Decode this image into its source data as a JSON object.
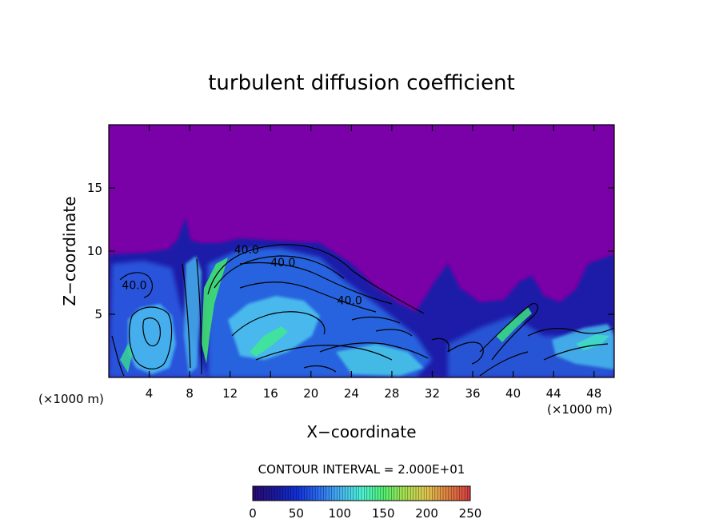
{
  "chart_data": {
    "type": "heatmap",
    "title": "turbulent diffusion coefficient",
    "xlabel": "X−coordinate",
    "ylabel": "Z−coordinate",
    "x_unit_left": "(×1000 m)",
    "x_unit_right": "(×1000 m)",
    "xlim": [
      0,
      50
    ],
    "ylim": [
      0,
      20
    ],
    "x_ticks": [
      4,
      8,
      12,
      16,
      20,
      24,
      28,
      32,
      36,
      40,
      44,
      48
    ],
    "y_ticks": [
      5,
      10,
      15
    ],
    "contour_interval_text": "CONTOUR INTERVAL = 2.000E+01",
    "contour_labels": [
      {
        "text": "40.0",
        "x": 1.3,
        "z": 7.0
      },
      {
        "text": "40.0",
        "x": 12.4,
        "z": 9.8
      },
      {
        "text": "40.0",
        "x": 16.0,
        "z": 8.8
      },
      {
        "text": "40.0",
        "x": 22.6,
        "z": 5.8
      }
    ],
    "colorbar": {
      "min": 0,
      "max": 250,
      "ticks": [
        0,
        50,
        100,
        150,
        200,
        250
      ],
      "colors": [
        "#2a0a78",
        "#1a1a9e",
        "#1030d8",
        "#2a6cf2",
        "#46b4f2",
        "#4ef2d8",
        "#50f070",
        "#a8e050",
        "#e0c850",
        "#e08040",
        "#d84040"
      ]
    },
    "colors": {
      "background_field": "#7a00a8",
      "low_turbulence": "#1a1aa8",
      "mid_turbulence": "#2c7ae8",
      "high_turbulence": "#40f0e0",
      "peak_turbulence": "#40f070"
    }
  }
}
